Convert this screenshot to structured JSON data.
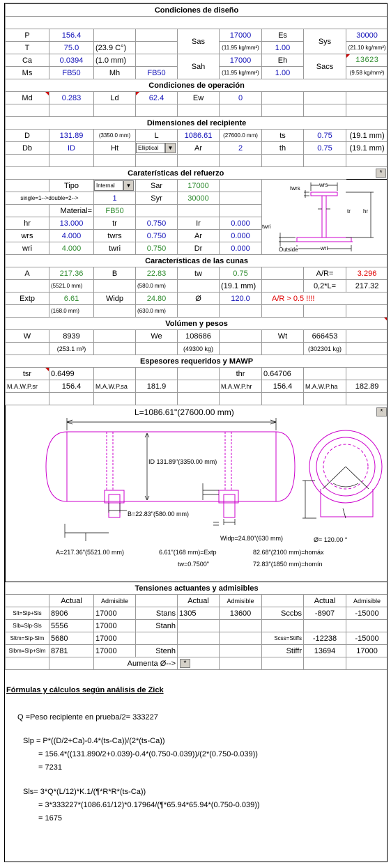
{
  "colors": {
    "blue": "#1010b8",
    "green": "#2e8b2e",
    "red": "#e00000",
    "magenta": "#cc00cc"
  },
  "design": {
    "title": "Condiciones de diseño",
    "P_l": "P",
    "P_v": "156.4",
    "T_l": "T",
    "T_v": "75.0",
    "T_c": "(23.9 C°)",
    "Ca_l": "Ca",
    "Ca_v": "0.0394",
    "Ca_mm": "(1.0 mm)",
    "Ms_l": "Ms",
    "Ms_v": "FB50",
    "Mh_l": "Mh",
    "Mh_v": "FB50",
    "Sas_l": "Sas",
    "Sas_v": "17000",
    "Sas_kg": "(11.95 kg/mm²)",
    "Sah_l": "Sah",
    "Sah_v": "17000",
    "Sah_kg": "(11.95 kg/mm²)",
    "Es_l": "Es",
    "Es_v": "1.00",
    "Eh_l": "Eh",
    "Eh_v": "1.00",
    "Sys_l": "Sys",
    "Sys_v": "30000",
    "Sys_kg": "(21.10 kg/mm²)",
    "Sacs_l": "Sacs",
    "Sacs_v": "13623",
    "Sacs_kg": "(9.58 kg/mm²)"
  },
  "operation": {
    "title": "Condiciones de operación",
    "Md_l": "Md",
    "Md_v": "0.283",
    "Ld_l": "Ld",
    "Ld_v": "62.4",
    "Ew_l": "Ew",
    "Ew_v": "0"
  },
  "vessel": {
    "title": "Dimensiones del recipiente",
    "D_l": "D",
    "D_v": "131.89",
    "D_mm": "(3350.0 mm)",
    "L_l": "L",
    "L_v": "1086.61",
    "L_mm": "(27600.0 mm)",
    "ts_l": "ts",
    "ts_v": "0.75",
    "ts_mm": "(19.1 mm)",
    "Db_l": "Db",
    "Db_v": "ID",
    "Ht_l": "Ht",
    "Ht_v": "Elliptical",
    "Ar_l": "Ar",
    "Ar_v": "2",
    "th_l": "th",
    "th_v": "0.75",
    "th_mm": "(19.1 mm)"
  },
  "stiffener": {
    "title": "Caraterísticas del refuerzo",
    "star": "*",
    "tipo_l": "Tipo",
    "tipo_v": "Internal",
    "single_l": "single=1-->double=2-->",
    "single_v": "1",
    "material_l": "Material=",
    "material_v": "FB50",
    "Sar_l": "Sar",
    "Sar_v": "17000",
    "Syr_l": "Syr",
    "Syr_v": "30000",
    "hr_l": "hr",
    "hr_v": "13.000",
    "tr_l": "tr",
    "tr_v": "0.750",
    "Ir_l": "Ir",
    "Ir_v": "0.000",
    "wrs_l": "wrs",
    "wrs_v": "4.000",
    "twrs_l": "twrs",
    "twrs_v": "0.750",
    "Ar_l": "Ar",
    "Ar_v": "0.000",
    "wri_l": "wri",
    "wri_v": "4.000",
    "twri_l": "twri",
    "twri_v": "0.750",
    "Dr_l": "Dr",
    "Dr_v": "0.000",
    "fig_twrs": "twrs",
    "fig_wrs": "wrs",
    "fig_tr": "tr",
    "fig_hr": "hr",
    "fig_twri": "twri",
    "fig_outside": "Outside",
    "fig_wri": "wri"
  },
  "saddle": {
    "title": "Características de las cunas",
    "A_l": "A",
    "A_v": "217.36",
    "A_mm": "(5521.0 mm)",
    "B_l": "B",
    "B_v": "22.83",
    "B_mm": "(580.0 mm)",
    "tw_l": "tw",
    "tw_v": "0.75",
    "tw_mm": "(19.1 mm)",
    "AR_l": "A/R=",
    "AR_v": "3.296",
    "L2_l": "0,2*L=",
    "L2_v": "217.32",
    "Extp_l": "Extp",
    "Extp_v": "6.61",
    "Extp_mm": "(168.0 mm)",
    "Widp_l": "Widp",
    "Widp_v": "24.80",
    "Widp_mm": "(630.0 mm)",
    "phi_l": "Ø",
    "phi_v": "120.0",
    "warn": "A/R > 0.5 !!!!"
  },
  "volume": {
    "title": "Volúmen y pesos",
    "W_l": "W",
    "W_v": "8939",
    "W_m3": "(253.1 m³)",
    "We_l": "We",
    "We_v": "108686",
    "We_kg": "(49300 kg)",
    "Wt_l": "Wt",
    "Wt_v": "666453",
    "Wt_kg": "(302301 kg)"
  },
  "thick": {
    "title": "Espesores requeridos y MAWP",
    "tsr_l": "tsr",
    "tsr_v": "0.6499",
    "thr_l": "thr",
    "thr_v": "0.64706",
    "sr_l": "M.A.W.P.sr",
    "sr_v": "156.4",
    "sa_l": "M.A.W.P.sa",
    "sa_v": "181.9",
    "hr_l": "M.A.W.P.hr",
    "hr_v": "156.4",
    "ha_l": "M.A.W.P.ha",
    "ha_v": "182.89"
  },
  "drawing": {
    "star": "*",
    "L_label": "L=1086.61\"(27600.00 mm)",
    "ID_label": "ID 131.89\"(3350.00 mm)",
    "B_label": "B=22.83\"(580.00 mm)",
    "A_label": "A=217.36\"(5521.00 mm)",
    "Extp_label": "6.61\"(168 mm)=Extp",
    "tw_label": "tw=0.7500\"",
    "Widp_label": "Widp=24.80\"(630 mm)",
    "homax": "82.68\"(2100 mm)=homáx",
    "homin": "72.83\"(1850 mm)=homín",
    "phi_label": "Ø= 120.00 °"
  },
  "stress": {
    "title": "Tensiones actuantes  y admisibles",
    "actual": "Actual",
    "admisible": "Admisible",
    "r1": {
      "l": "Slt=Slp+Sls",
      "a": "8906",
      "b": "17000",
      "m": "Stans",
      "c": "1305",
      "d": "13600",
      "n": "Sccbs",
      "e": "-8907",
      "f": "-15000"
    },
    "r2": {
      "l": "Slb=Slp-Sls",
      "a": "5556",
      "b": "17000",
      "m": "Stanh"
    },
    "r3": {
      "l": "Sltm=Slp-Slm",
      "a": "5680",
      "b": "17000",
      "n": "Scss=Stiffs",
      "e": "-12238",
      "f": "-15000"
    },
    "r4": {
      "l": "Slbm=Slp+Slm",
      "a": "8781",
      "b": "17000",
      "m": "Stenh",
      "n": "Stiffr",
      "e": "13694",
      "f": "17000"
    },
    "aumenta": "Aumenta Ø-->",
    "star": "*"
  },
  "formulas": {
    "title": "Fórmulas y cálculos según análisis de Zick",
    "q": "Q =Peso recipiente en prueba/2=    333227",
    "slp1": "Slp =   P*((D/2+Ca)-0.4*(ts-Ca))/(2*(ts-Ca))",
    "slp2": "=   156.4*((131.890/2+0.039)-0.4*(0.750-0.039))/(2*(0.750-0.039))",
    "slp3": "=   7231",
    "sls1": "Sls=  3*Q*(L/12)*K.1/(¶*R*R*(ts-Ca))",
    "sls2": "=   3*333227*(1086.61/12)*0.17964/(¶*65.94*65.94*(0.750-0.039))",
    "sls3": "=   1675"
  }
}
